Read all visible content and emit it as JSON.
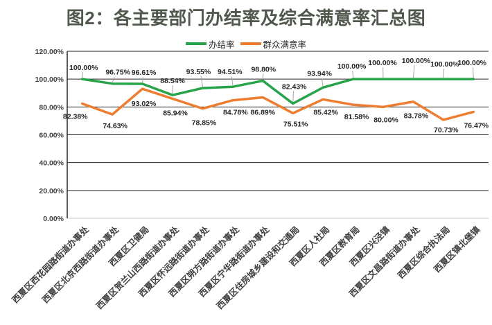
{
  "title": "图2：各主要部门办结率及综合满意率汇总图",
  "chart_data": {
    "type": "line",
    "title": "图2：各主要部门办结率及综合满意率汇总图",
    "xlabel": "",
    "ylabel": "",
    "ylim": [
      0,
      120
    ],
    "ytick_step": 20,
    "ytick_labels": [
      "0.00%",
      "20.00%",
      "40.00%",
      "60.00%",
      "80.00%",
      "100.00%",
      "120.00%"
    ],
    "grid": true,
    "legend_position": "top",
    "value_format": "0.00%",
    "categories": [
      "西夏区西花园路街道办事处",
      "西夏区北京西路街道办事处",
      "西夏区卫健局",
      "西夏区贺兰山西路街道办事处",
      "西夏区怀远路街道办事处",
      "西夏区朔方路街道办事处",
      "西夏区宁华路街道办事处",
      "西夏区住房城乡建设和交通局",
      "西夏区人社局",
      "西夏区教育局",
      "西夏区兴泾镇",
      "西夏区文昌路街道办事处",
      "西夏区综合执法局",
      "西夏区镇北堡镇"
    ],
    "series": [
      {
        "name": "办结率",
        "color": "#27A34A",
        "values": [
          100.0,
          96.75,
          96.61,
          88.54,
          93.55,
          94.51,
          98.8,
          82.43,
          93.94,
          100.0,
          100.0,
          100.0,
          100.0,
          100.0
        ],
        "leader_lines": true,
        "label_offsets": [
          [
            2,
            -17
          ],
          [
            8,
            -17
          ],
          [
            2,
            -17
          ],
          [
            0,
            -21
          ],
          [
            -6,
            -24
          ],
          [
            -4,
            -22
          ],
          [
            1,
            -17
          ],
          [
            2,
            -25
          ],
          [
            -5,
            -21
          ],
          [
            -2,
            -19
          ],
          [
            -1,
            -24
          ],
          [
            4,
            -27
          ],
          [
            2,
            -22
          ],
          [
            -2,
            -24
          ]
        ]
      },
      {
        "name": "群众满意率",
        "color": "#ED7D31",
        "values": [
          82.38,
          74.63,
          93.02,
          85.94,
          78.85,
          84.78,
          86.89,
          75.51,
          85.42,
          81.58,
          80.0,
          83.78,
          70.73,
          76.47
        ],
        "leader_lines": false,
        "label_offsets": [
          [
            -10,
            18
          ],
          [
            4,
            16
          ],
          [
            2,
            21
          ],
          [
            4,
            20
          ],
          [
            2,
            20
          ],
          [
            4,
            17
          ],
          [
            0,
            21
          ],
          [
            4,
            15
          ],
          [
            4,
            18
          ],
          [
            5,
            17
          ],
          [
            4,
            18
          ],
          [
            4,
            20
          ],
          [
            4,
            14
          ],
          [
            4,
            19
          ]
        ]
      }
    ],
    "colors": {
      "title_text": "#51594F",
      "grid_line": "#262626",
      "y_axis_line": "#262626",
      "x_axis_line": "#D9D9D9",
      "tick_text": "#404040",
      "data_label_text": "#262626",
      "leader_line": "#A6A6A6"
    }
  }
}
